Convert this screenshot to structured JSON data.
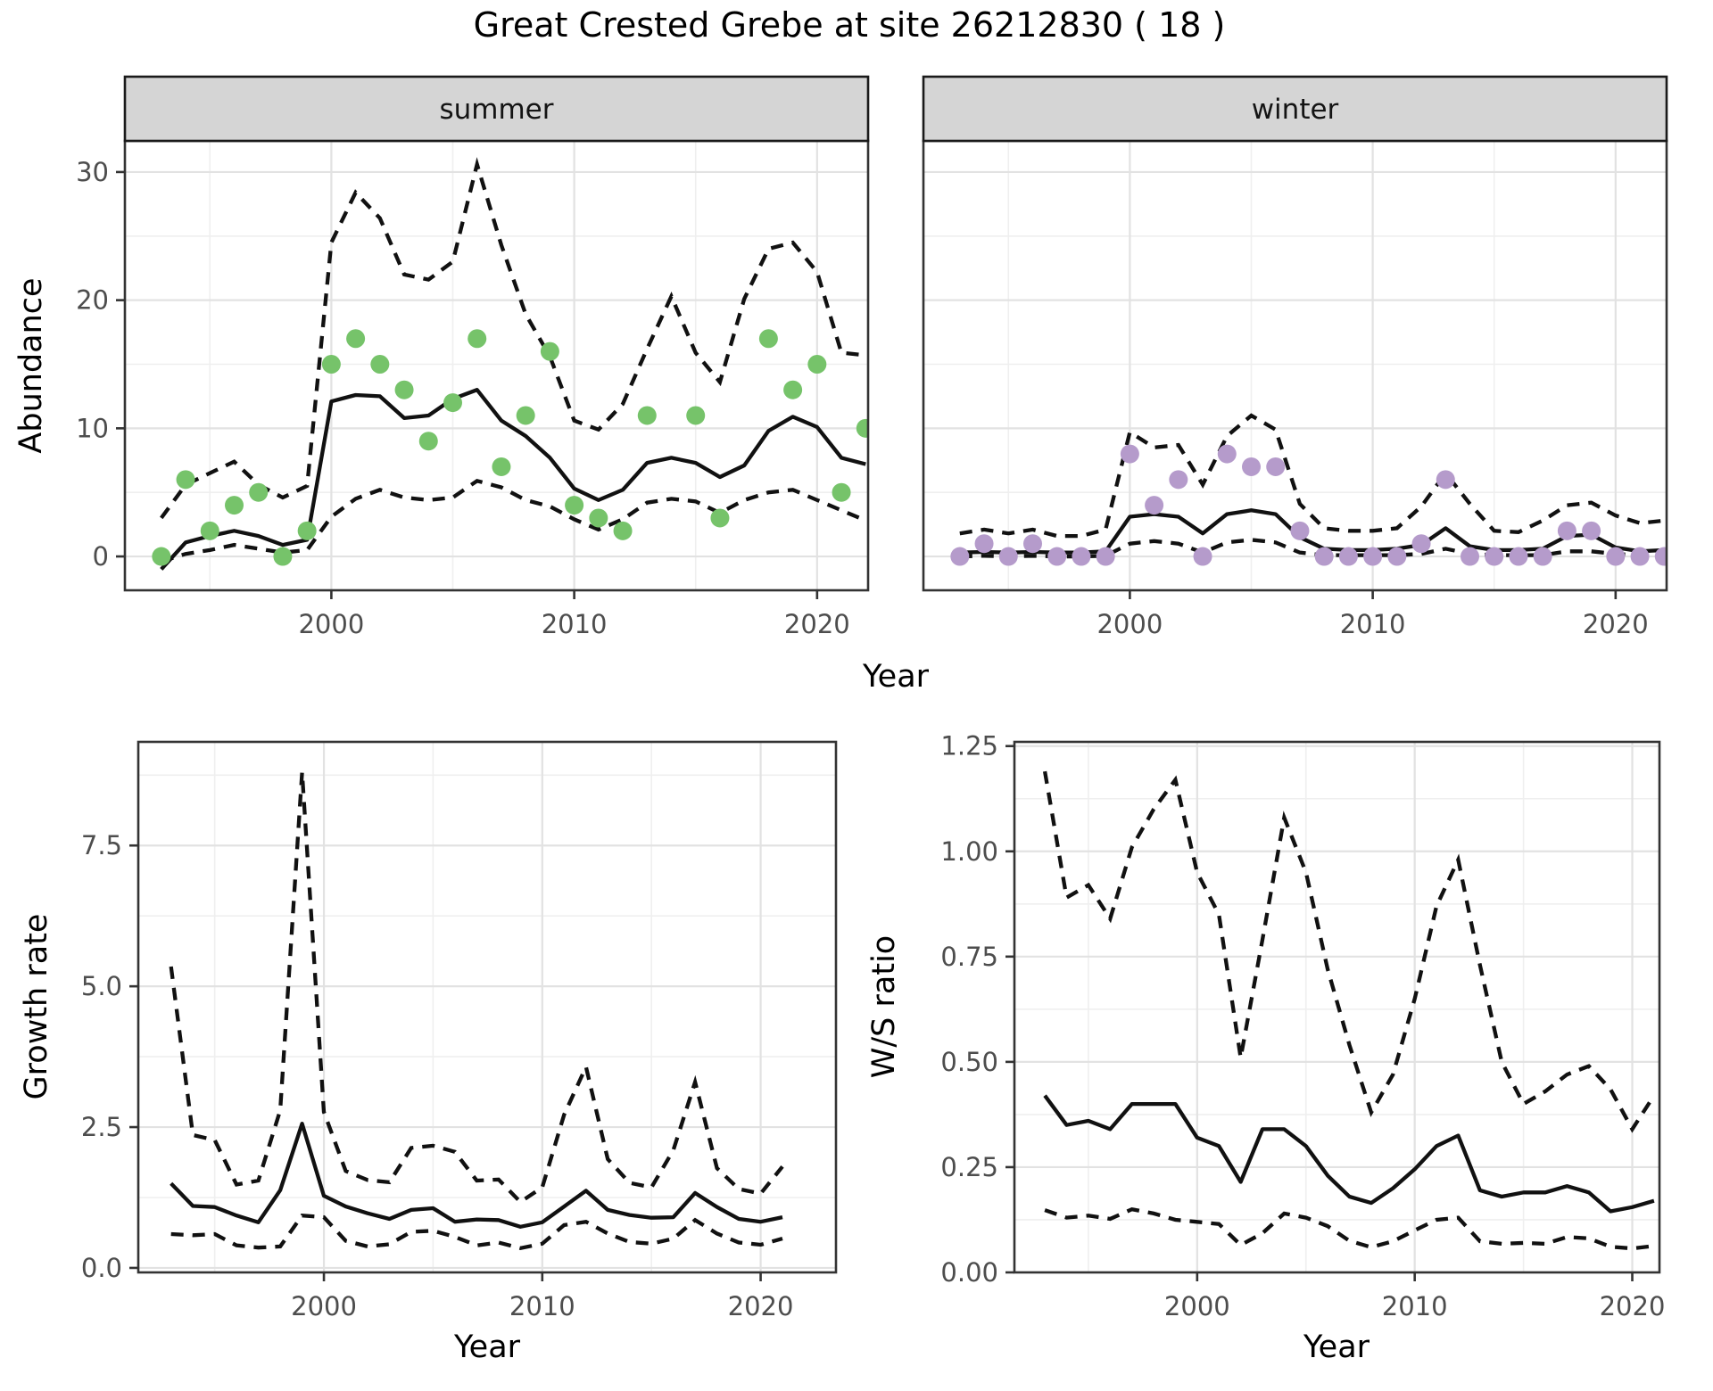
{
  "title": "Great Crested Grebe at site 26212830 ( 18 )",
  "colors": {
    "summer_points": "#76c36a",
    "winter_points": "#b59bcb",
    "line": "#111111",
    "strip_bg": "#d5d5d5",
    "strip_border": "#1a1a1a",
    "panel_border": "#333333",
    "grid_major": "#e2e2e2",
    "grid_minor": "#efefef",
    "tick_text": "#4d4d4d",
    "axis_title": "#000000"
  },
  "chart_data": [
    {
      "type": "line",
      "title": "Abundance by season",
      "xlabel": "Year",
      "ylabel": "Abundance",
      "xlim": [
        1991.5,
        2022.1
      ],
      "ylim": [
        -2.64,
        32.43
      ],
      "xticks": [
        {
          "v": 2000,
          "label": "2000"
        },
        {
          "v": 2010,
          "label": "2010"
        },
        {
          "v": 2020,
          "label": "2020"
        }
      ],
      "x_minor": [
        1995,
        2005,
        2015
      ],
      "yticks": [
        {
          "v": 0,
          "label": "0"
        },
        {
          "v": 10,
          "label": "10"
        },
        {
          "v": 20,
          "label": "20"
        },
        {
          "v": 30,
          "label": "30"
        }
      ],
      "y_minor": [
        5,
        15,
        25
      ],
      "grid": true,
      "legend": "none",
      "years": [
        1993,
        1994,
        1995,
        1996,
        1997,
        1998,
        1999,
        2000,
        2001,
        2002,
        2003,
        2004,
        2005,
        2006,
        2007,
        2008,
        2009,
        2010,
        2011,
        2012,
        2013,
        2014,
        2015,
        2016,
        2017,
        2018,
        2019,
        2020,
        2021,
        2022
      ],
      "facets": [
        {
          "label": "summer",
          "point_color_key": "summer_points",
          "observed": [
            0,
            6,
            2,
            4,
            5,
            0,
            2,
            15,
            17,
            15,
            13,
            9,
            12,
            17,
            7,
            11,
            16,
            4,
            3,
            2,
            11,
            null,
            11,
            3,
            null,
            17,
            13,
            15,
            5,
            10
          ],
          "fit": [
            -1.0,
            1.1,
            1.6,
            2.0,
            1.6,
            0.9,
            1.3,
            12.1,
            12.6,
            12.5,
            10.8,
            11.0,
            12.3,
            13.0,
            10.6,
            9.4,
            7.7,
            5.3,
            4.4,
            5.2,
            7.3,
            7.7,
            7.3,
            6.2,
            7.1,
            9.8,
            10.9,
            10.1,
            7.7,
            7.2
          ],
          "upper": [
            3.0,
            5.6,
            6.5,
            7.4,
            5.6,
            4.6,
            5.5,
            24.5,
            28.4,
            26.4,
            22.0,
            21.6,
            23.0,
            30.6,
            24.3,
            18.9,
            15.6,
            10.6,
            9.9,
            11.9,
            16.2,
            20.3,
            15.9,
            13.6,
            20.1,
            24.0,
            24.5,
            22.2,
            15.9,
            15.7
          ],
          "lower": [
            -0.4,
            0.2,
            0.5,
            0.9,
            0.6,
            0.3,
            0.5,
            3.1,
            4.5,
            5.2,
            4.6,
            4.4,
            4.6,
            5.9,
            5.4,
            4.4,
            3.9,
            2.9,
            2.1,
            2.9,
            4.2,
            4.5,
            4.3,
            3.4,
            4.4,
            5.0,
            5.2,
            4.4,
            3.6,
            2.8
          ]
        },
        {
          "label": "winter",
          "point_color_key": "winter_points",
          "observed": [
            0,
            1,
            0,
            1,
            0,
            0,
            0,
            8,
            4,
            6,
            0,
            8,
            7,
            7,
            2,
            0,
            0,
            0,
            0,
            1,
            6,
            0,
            0,
            0,
            0,
            2,
            2,
            0,
            0,
            0
          ],
          "fit": [
            0.3,
            0.35,
            0.3,
            0.35,
            0.3,
            0.3,
            0.4,
            3.1,
            3.3,
            3.1,
            1.8,
            3.3,
            3.6,
            3.3,
            1.5,
            0.6,
            0.5,
            0.5,
            0.6,
            0.9,
            2.2,
            0.8,
            0.5,
            0.5,
            0.6,
            1.6,
            1.7,
            0.7,
            0.4,
            0.5
          ],
          "upper": [
            1.8,
            2.1,
            1.8,
            2.1,
            1.6,
            1.6,
            2.1,
            9.7,
            8.5,
            8.7,
            5.6,
            9.4,
            11.0,
            9.9,
            4.1,
            2.2,
            2.0,
            2.0,
            2.2,
            3.9,
            6.5,
            4.1,
            2.0,
            1.9,
            2.8,
            4.0,
            4.2,
            3.2,
            2.6,
            2.8
          ],
          "lower": [
            0,
            0.05,
            0,
            0.05,
            0,
            0,
            0.05,
            1.0,
            1.2,
            1.0,
            0.3,
            1.1,
            1.3,
            1.1,
            0.3,
            0.1,
            0.1,
            0.1,
            0.1,
            0.2,
            0.6,
            0.2,
            0.1,
            0.1,
            0.1,
            0.4,
            0.4,
            0.2,
            0.1,
            0.1
          ]
        }
      ]
    },
    {
      "type": "line",
      "title": "Growth rate",
      "xlabel": "Year",
      "ylabel": "Growth rate",
      "xlim": [
        1991.5,
        2023.45
      ],
      "ylim": [
        -0.08,
        9.34
      ],
      "xticks": [
        {
          "v": 2000,
          "label": "2000"
        },
        {
          "v": 2010,
          "label": "2010"
        },
        {
          "v": 2020,
          "label": "2020"
        }
      ],
      "x_minor": [
        1995,
        2005,
        2015
      ],
      "yticks": [
        {
          "v": 0,
          "label": "0.0"
        },
        {
          "v": 2.5,
          "label": "2.5"
        },
        {
          "v": 5,
          "label": "5.0"
        },
        {
          "v": 7.5,
          "label": "7.5"
        }
      ],
      "y_minor": [
        1.25,
        3.75,
        6.25,
        8.75
      ],
      "grid": true,
      "legend": "none",
      "years": [
        1993,
        1994,
        1995,
        1996,
        1997,
        1998,
        1999,
        2000,
        2001,
        2002,
        2003,
        2004,
        2005,
        2006,
        2007,
        2008,
        2009,
        2010,
        2011,
        2012,
        2013,
        2014,
        2015,
        2016,
        2017,
        2018,
        2019,
        2020,
        2021
      ],
      "fit": [
        1.5,
        1.1,
        1.08,
        0.93,
        0.81,
        1.38,
        2.56,
        1.28,
        1.09,
        0.97,
        0.87,
        1.03,
        1.06,
        0.82,
        0.86,
        0.85,
        0.73,
        0.81,
        1.09,
        1.37,
        1.03,
        0.94,
        0.89,
        0.9,
        1.33,
        1.08,
        0.87,
        0.82,
        0.9
      ],
      "upper": [
        5.35,
        2.36,
        2.27,
        1.48,
        1.55,
        2.8,
        8.8,
        2.77,
        1.72,
        1.56,
        1.52,
        2.13,
        2.17,
        2.06,
        1.55,
        1.57,
        1.17,
        1.43,
        2.72,
        3.57,
        1.93,
        1.51,
        1.43,
        2.09,
        3.3,
        1.77,
        1.4,
        1.32,
        1.8
      ],
      "lower": [
        0.6,
        0.58,
        0.6,
        0.4,
        0.36,
        0.38,
        0.93,
        0.9,
        0.48,
        0.38,
        0.42,
        0.64,
        0.66,
        0.55,
        0.4,
        0.45,
        0.35,
        0.43,
        0.76,
        0.82,
        0.61,
        0.46,
        0.43,
        0.52,
        0.85,
        0.61,
        0.45,
        0.41,
        0.52
      ]
    },
    {
      "type": "line",
      "title": "W/S ratio",
      "xlabel": "Year",
      "ylabel": "W/S ratio",
      "xlim": [
        1991.6,
        2021.25
      ],
      "ylim": [
        0,
        1.26
      ],
      "xticks": [
        {
          "v": 2000,
          "label": "2000"
        },
        {
          "v": 2010,
          "label": "2010"
        },
        {
          "v": 2020,
          "label": "2020"
        }
      ],
      "x_minor": [
        1995,
        2005,
        2015
      ],
      "yticks": [
        {
          "v": 0,
          "label": "0.00"
        },
        {
          "v": 0.25,
          "label": "0.25"
        },
        {
          "v": 0.5,
          "label": "0.50"
        },
        {
          "v": 0.75,
          "label": "0.75"
        },
        {
          "v": 1.0,
          "label": "1.00"
        },
        {
          "v": 1.25,
          "label": "1.25"
        }
      ],
      "y_minor": [
        0.125,
        0.375,
        0.625,
        0.875,
        1.125
      ],
      "grid": true,
      "legend": "none",
      "years": [
        1993,
        1994,
        1995,
        1996,
        1997,
        1998,
        1999,
        2000,
        2001,
        2002,
        2003,
        2004,
        2005,
        2006,
        2007,
        2008,
        2009,
        2010,
        2011,
        2012,
        2013,
        2014,
        2015,
        2016,
        2017,
        2018,
        2019,
        2020,
        2021
      ],
      "fit": [
        0.42,
        0.35,
        0.36,
        0.34,
        0.4,
        0.4,
        0.4,
        0.32,
        0.3,
        0.215,
        0.34,
        0.34,
        0.3,
        0.23,
        0.18,
        0.165,
        0.2,
        0.245,
        0.3,
        0.325,
        0.195,
        0.18,
        0.19,
        0.19,
        0.205,
        0.19,
        0.145,
        0.155,
        0.17
      ],
      "upper": [
        1.19,
        0.89,
        0.92,
        0.84,
        1.01,
        1.1,
        1.17,
        0.95,
        0.85,
        0.51,
        0.79,
        1.08,
        0.95,
        0.72,
        0.54,
        0.38,
        0.47,
        0.65,
        0.87,
        0.98,
        0.73,
        0.5,
        0.4,
        0.43,
        0.47,
        0.49,
        0.435,
        0.34,
        0.42
      ],
      "lower": [
        0.148,
        0.13,
        0.135,
        0.127,
        0.15,
        0.14,
        0.125,
        0.12,
        0.115,
        0.065,
        0.093,
        0.14,
        0.13,
        0.11,
        0.075,
        0.06,
        0.074,
        0.1,
        0.125,
        0.13,
        0.074,
        0.068,
        0.07,
        0.068,
        0.084,
        0.081,
        0.061,
        0.057,
        0.063
      ]
    }
  ]
}
